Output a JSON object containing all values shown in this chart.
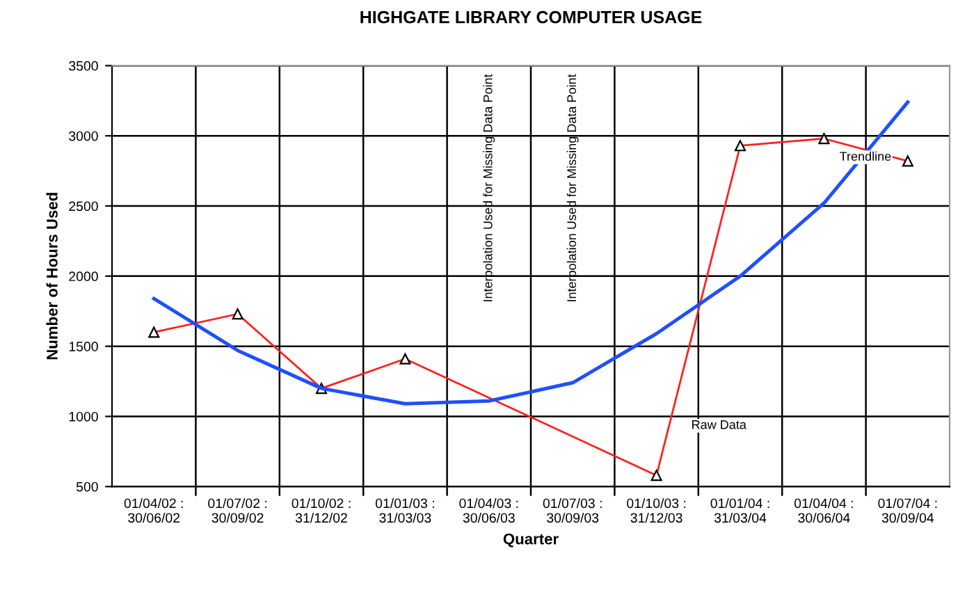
{
  "chart_data": {
    "type": "line",
    "title": "HIGHGATE LIBRARY COMPUTER USAGE",
    "xlabel": "Quarter",
    "ylabel": "Number of Hours Used",
    "categories": [
      "01/04/02 :\n30/06/02",
      "01/07/02 :\n30/09/02",
      "01/10/02 :\n31/12/02",
      "01/01/03 :\n31/03/03",
      "01/04/03 :\n30/06/03",
      "01/07/03 :\n30/09/03",
      "01/10/03 :\n31/12/03",
      "01/01/04 :\n31/03/04",
      "01/04/04 :\n30/06/04",
      "01/07/04 :\n30/09/04"
    ],
    "series": [
      {
        "name": "Raw Data",
        "color": "#ff2020",
        "marker": "triangle",
        "values": [
          1600,
          1730,
          1200,
          1410,
          null,
          null,
          580,
          2930,
          2980,
          2820
        ]
      },
      {
        "name": "Trendline",
        "color": "#1f4fff",
        "marker": "none",
        "values": [
          1840,
          1470,
          1200,
          1090,
          1110,
          1240,
          1590,
          2000,
          2520,
          3240
        ]
      }
    ],
    "annotations": [
      "Interpolation Used for Missing Data Point",
      "Interpolation Used for Missing Data Point"
    ],
    "ylim": [
      500,
      3500
    ],
    "yticks": [
      500,
      1000,
      1500,
      2000,
      2500,
      3000,
      3500
    ],
    "grid": true,
    "legend": false
  }
}
